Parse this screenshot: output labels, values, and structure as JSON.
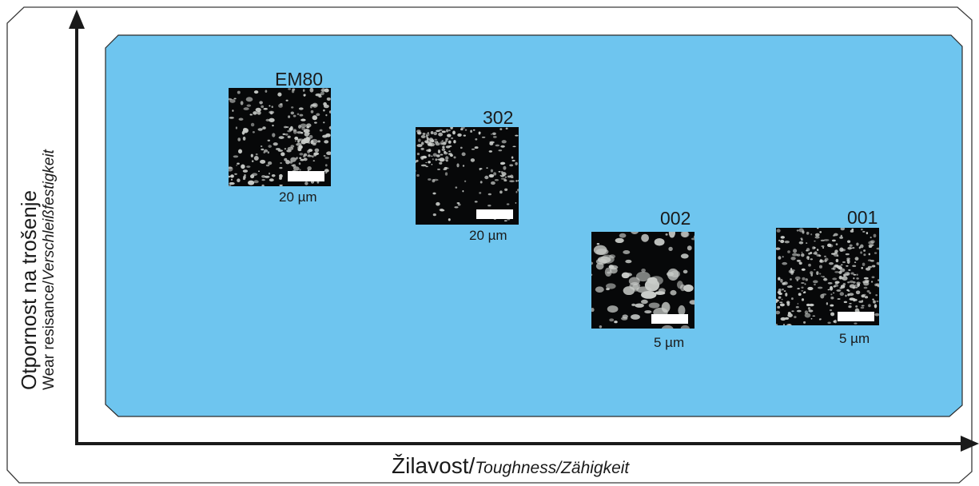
{
  "x_axis": {
    "label_main": "Žilavost/",
    "label_italic": "Toughness/Zähigkeit"
  },
  "y_axis": {
    "label_main": "Otpornost na trošenje",
    "label_normal": "Wear resisance/",
    "label_italic": "Verschleißfestigkeit"
  },
  "samples": [
    {
      "name": "EM80",
      "scale": "20 µm",
      "texture": "fine dense network"
    },
    {
      "name": "302",
      "scale": "20 µm",
      "texture": "dark patches with light network"
    },
    {
      "name": "002",
      "scale": "5 µm",
      "texture": "coarse light blobs"
    },
    {
      "name": "001",
      "scale": "5 µm",
      "texture": "fine speckle"
    }
  ],
  "colors": {
    "panel": "#6ec5ef",
    "axis": "#1a1a1a",
    "frame": "#3a3a3a",
    "micro_dark": "#070809",
    "micro_light": "#c9ccc9"
  }
}
